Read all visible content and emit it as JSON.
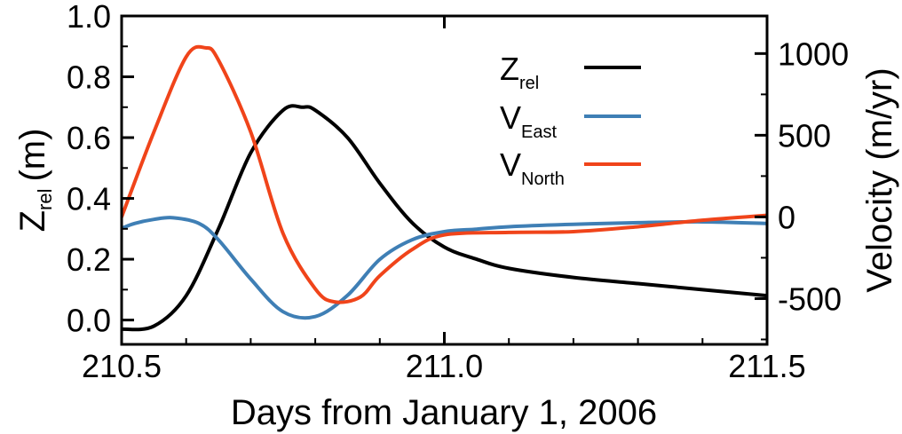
{
  "chart_data": {
    "type": "line",
    "xlabel": "Days from January 1, 2006",
    "ylabel_left": {
      "base": "Z",
      "sub": "rel",
      "unit": "(m)"
    },
    "ylabel_right": "Velocity (m/yr)",
    "xlim": [
      210.5,
      211.5
    ],
    "ylim_left": [
      -0.08,
      1.0
    ],
    "ylim_right": [
      -780,
      1230
    ],
    "x_ticks": [
      210.5,
      211.0,
      211.5
    ],
    "x_tick_labels": [
      "210.5",
      "211.0",
      "211.5"
    ],
    "y_left_ticks": [
      0.0,
      0.2,
      0.4,
      0.6,
      0.8,
      1.0
    ],
    "y_left_tick_labels": [
      "0.0",
      "0.2",
      "0.4",
      "0.6",
      "0.8",
      "1.0"
    ],
    "y_right_ticks": [
      -500,
      0,
      500,
      1000
    ],
    "y_right_tick_labels": [
      "-500",
      "0",
      "500",
      "1000"
    ],
    "grid": false,
    "legend_position": "top-right",
    "series": [
      {
        "name": "Z",
        "name_sub": "rel",
        "axis": "left",
        "color": "#000000",
        "x": [
          210.5,
          210.55,
          210.6,
          210.65,
          210.7,
          210.75,
          210.78,
          210.8,
          210.85,
          210.9,
          210.95,
          211.0,
          211.05,
          211.1,
          211.2,
          211.3,
          211.4,
          211.5
        ],
        "y": [
          -0.03,
          -0.02,
          0.08,
          0.3,
          0.55,
          0.69,
          0.7,
          0.69,
          0.6,
          0.45,
          0.32,
          0.24,
          0.2,
          0.17,
          0.14,
          0.12,
          0.1,
          0.08
        ]
      },
      {
        "name": "V",
        "name_sub": "East",
        "axis": "right",
        "color": "#3f7fb5",
        "x": [
          210.5,
          210.52,
          210.55,
          210.58,
          210.62,
          210.65,
          210.7,
          210.75,
          210.8,
          210.85,
          210.9,
          210.95,
          211.0,
          211.05,
          211.1,
          211.2,
          211.3,
          211.4,
          211.5
        ],
        "y": [
          -70,
          -40,
          -15,
          -5,
          -40,
          -140,
          -380,
          -580,
          -610,
          -480,
          -260,
          -140,
          -90,
          -75,
          -60,
          -45,
          -35,
          -30,
          -40
        ]
      },
      {
        "name": "V",
        "name_sub": "North",
        "axis": "right",
        "color": "#f0441a",
        "x": [
          210.5,
          210.55,
          210.6,
          210.63,
          210.65,
          210.7,
          210.75,
          210.8,
          210.83,
          210.87,
          210.9,
          210.95,
          211.0,
          211.1,
          211.2,
          211.3,
          211.4,
          211.5
        ],
        "y": [
          0,
          520,
          980,
          1035,
          960,
          520,
          -100,
          -440,
          -520,
          -490,
          -360,
          -200,
          -110,
          -95,
          -90,
          -60,
          -20,
          10
        ]
      }
    ]
  }
}
